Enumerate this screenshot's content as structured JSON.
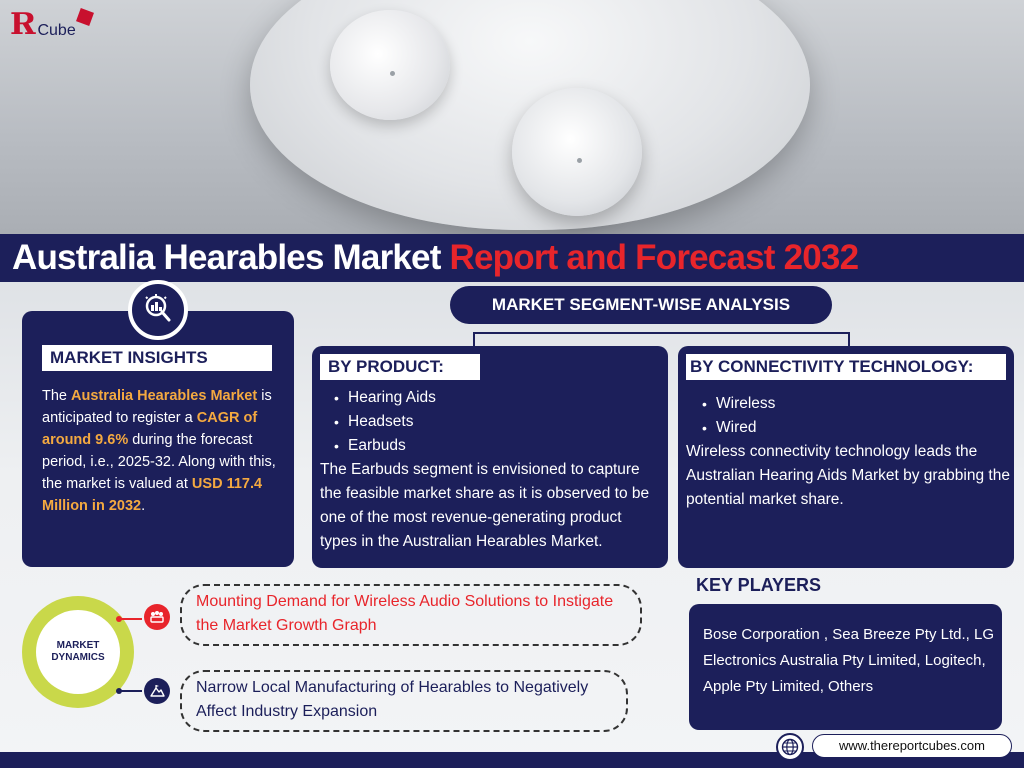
{
  "brand": {
    "logo_letter": "Я",
    "logo_text": "Cube"
  },
  "title": {
    "main": "Australia Hearables Market",
    "accent": "Report and Forecast 2032"
  },
  "insights": {
    "label": "MARKET INSIGHTS",
    "t1": "The ",
    "h1": "Australia Hearables Market",
    "t2": " is anticipated to register a ",
    "h2": "CAGR of around 9.6%",
    "t3": " during the forecast period, i.e., 2025-32. Along with this, the market is valued at ",
    "h3": "USD 117.4 Million in 2032",
    "t4": "."
  },
  "segment": {
    "header": "MARKET SEGMENT-WISE ANALYSIS",
    "product": {
      "label": "BY PRODUCT:",
      "items": [
        "Hearing Aids",
        "Headsets",
        "Earbuds"
      ],
      "text": "The Earbuds segment is envisioned to capture the feasible market share as it is observed to be one of the most revenue-generating product types in the Australian Hearables Market."
    },
    "tech": {
      "label": "BY CONNECTIVITY TECHNOLOGY:",
      "items": [
        "Wireless",
        "Wired"
      ],
      "text": "Wireless connectivity technology leads the Australian Hearing Aids Market by grabbing the potential market share."
    }
  },
  "dynamics": {
    "label_line1": "MARKET",
    "label_line2": "DYNAMICS",
    "driver": "Mounting Demand for Wireless Audio Solutions to Instigate the Market Growth Graph",
    "challenge": "Narrow Local Manufacturing of Hearables to Negatively Affect Industry Expansion"
  },
  "key_players": {
    "title": "KEY PLAYERS",
    "text": "Bose Corporation , Sea Breeze Pty Ltd., LG Electronics Australia Pty Limited, Logitech, Apple Pty Limited, Others"
  },
  "footer": {
    "url": "www.thereportcubes.com"
  },
  "icons": [
    "insights-chart-icon",
    "growth-people-icon",
    "mountain-challenge-icon",
    "globe-icon",
    "cube-icon"
  ],
  "colors": {
    "navy": "#1c1f5a",
    "red": "#e8252b",
    "highlight": "#f4a940",
    "lime": "#c9d84a"
  }
}
